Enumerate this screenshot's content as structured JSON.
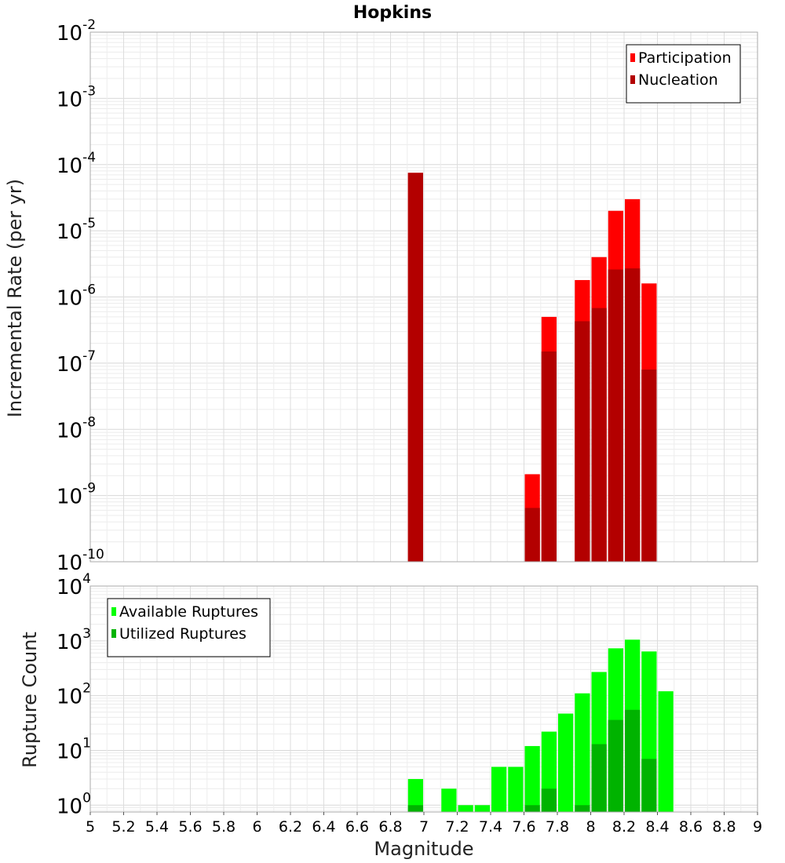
{
  "chart_data": {
    "type": "bar",
    "title": "Hopkins",
    "xlabel": "Magnitude",
    "x_ticks": [
      "5",
      "5.2",
      "5.4",
      "5.6",
      "5.8",
      "6",
      "6.2",
      "6.4",
      "6.6",
      "6.8",
      "7",
      "7.2",
      "7.4",
      "7.6",
      "7.8",
      "8",
      "8.2",
      "8.4",
      "8.6",
      "8.8",
      "9"
    ],
    "xlim": [
      5,
      9
    ],
    "bar_width": 0.1,
    "panels": [
      {
        "id": "rate",
        "ylabel": "Incremental Rate (per yr)",
        "yscale": "log",
        "ylim_exp": [
          -10,
          -2
        ],
        "y_tick_exponents": [
          "-10",
          "-9",
          "-8",
          "-7",
          "-6",
          "-5",
          "-4",
          "-3",
          "-2"
        ],
        "legend_position": "top-right",
        "series": [
          {
            "name": "Participation",
            "color": "#ff0000",
            "points": [
              {
                "x": 6.95,
                "y": 7.5e-05
              },
              {
                "x": 7.65,
                "y": 2.1e-09
              },
              {
                "x": 7.75,
                "y": 5e-07
              },
              {
                "x": 7.95,
                "y": 1.8e-06
              },
              {
                "x": 8.05,
                "y": 4e-06
              },
              {
                "x": 8.15,
                "y": 2e-05
              },
              {
                "x": 8.25,
                "y": 3e-05
              },
              {
                "x": 8.35,
                "y": 1.6e-06
              }
            ]
          },
          {
            "name": "Nucleation",
            "color": "#b30000",
            "points": [
              {
                "x": 6.95,
                "y": 7.5e-05
              },
              {
                "x": 7.65,
                "y": 6.5e-10
              },
              {
                "x": 7.75,
                "y": 1.5e-07
              },
              {
                "x": 7.95,
                "y": 4.3e-07
              },
              {
                "x": 8.05,
                "y": 6.8e-07
              },
              {
                "x": 8.15,
                "y": 2.6e-06
              },
              {
                "x": 8.25,
                "y": 2.7e-06
              },
              {
                "x": 8.35,
                "y": 8e-08
              }
            ]
          }
        ]
      },
      {
        "id": "count",
        "ylabel": "Rupture Count",
        "yscale": "log",
        "ylim": [
          0.75,
          10000
        ],
        "y_tick_exponents": [
          "0",
          "1",
          "2",
          "3",
          "4"
        ],
        "legend_position": "top-left",
        "series": [
          {
            "name": "Available Ruptures",
            "color": "#00ff00",
            "points": [
              {
                "x": 6.95,
                "y": 3
              },
              {
                "x": 7.15,
                "y": 2
              },
              {
                "x": 7.25,
                "y": 1
              },
              {
                "x": 7.35,
                "y": 1
              },
              {
                "x": 7.45,
                "y": 5
              },
              {
                "x": 7.55,
                "y": 5
              },
              {
                "x": 7.65,
                "y": 12
              },
              {
                "x": 7.75,
                "y": 22
              },
              {
                "x": 7.85,
                "y": 47
              },
              {
                "x": 7.95,
                "y": 110
              },
              {
                "x": 8.05,
                "y": 270
              },
              {
                "x": 8.15,
                "y": 730
              },
              {
                "x": 8.25,
                "y": 1050
              },
              {
                "x": 8.35,
                "y": 640
              },
              {
                "x": 8.45,
                "y": 120
              }
            ]
          },
          {
            "name": "Utilized Ruptures",
            "color": "#00b300",
            "points": [
              {
                "x": 6.95,
                "y": 1
              },
              {
                "x": 7.65,
                "y": 1
              },
              {
                "x": 7.75,
                "y": 2
              },
              {
                "x": 7.95,
                "y": 1
              },
              {
                "x": 8.05,
                "y": 13
              },
              {
                "x": 8.15,
                "y": 36
              },
              {
                "x": 8.25,
                "y": 55
              },
              {
                "x": 8.35,
                "y": 7
              }
            ]
          }
        ]
      }
    ]
  }
}
